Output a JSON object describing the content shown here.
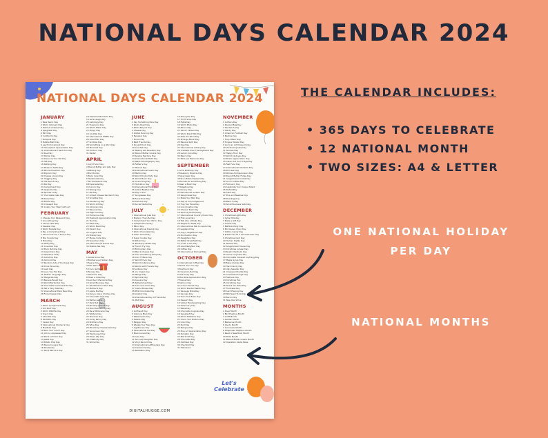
{
  "title": "NATIONAL DAYS CALENDAR 2024",
  "sheet": {
    "title": "NATIONAL DAYS CALENDAR 2024",
    "footer": "DIGITALHUGGE.COM",
    "sticker": "Let's Celebrate",
    "columns": [
      {
        "sections": [
          {
            "month": "JANUARY",
            "days": [
              "1 New Year's Day",
              "2 World Introvert Day",
              "3 Festival of Sleep Day",
              "4 Spaghetti Day",
              "5 Bird Day",
              "6 Cuddle Up Day",
              "7 Tempura Day",
              "8 Bubble Bath Day",
              "9 Law Enforcement Day",
              "10 Houseplant Appreciation Day",
              "11 International Thank-You Day",
              "12 Kiss Day",
              "13 Sticker Day",
              "14 Dress Up Your Pet Day",
              "15 Hat Day",
              "16 Nothing Day",
              "17 Museum Selfie Day",
              "18 Winnie-the-Pooh Day",
              "19 Popcorn Day",
              "20 Cheese Lovers Day",
              "21 Hugging Day",
              "22 Hot Sauce Day",
              "23 Pie Day",
              "24 Compliment Day",
              "25 Opposite Day",
              "26 Spouse's Day",
              "27 Chocolate Cake Day",
              "28 Kazoo Day",
              "29 Puzzle Day",
              "30 Croissant Day",
              "31 Inspire Your Heart with Art"
            ]
          },
          {
            "month": "FEBRUARY",
            "days": [
              "1 Change Your Password Day",
              "2 Groundhog Day",
              "3 Carrot Cake Day",
              "4 Sweater Day",
              "5 World Nutella Day",
              "6 Pay a Compliment Day",
              "7 Send a Card to a Friend Day",
              "8 Boy Scouts Day",
              "9 Pizza Day",
              "10 Teddy Day",
              "11 Inventors Day",
              "12 Plum Pudding Day",
              "13 Galentine's Day",
              "14 Valentine's Day",
              "15 Gumdrop Day",
              "16 Almond Day",
              "17 Random Acts of Kindness Day",
              "18 Drink Wine Day",
              "19 Lash Day",
              "20 Love Your Pet Day",
              "21 Mother Language Day",
              "22 Margarita Day",
              "23 Banana Bread Day",
              "24 World Bartender Day",
              "25 Chocolate Covered Nuts Day",
              "26 Tell a Fairy Tale Day",
              "27 International Polar Bear Day",
              "28 Floral Design Day"
            ]
          },
          {
            "month": "MARCH",
            "days": [
              "1 World Compliment Day",
              "2 Old Stuff Day",
              "3 World Wildlife Day",
              "4 Snack Day",
              "5 Absinthe Day",
              "6 Dentist's Day",
              "7 Cereal Day",
              "8 International Women's Day",
              "9 Meatball Day",
              "10 Pack Your Lunch Day",
              "11 Johnny Appleseed Day",
              "12 Plant a Flower Day",
              "13 Jewel Day",
              "14 Potato Chip Day",
              "15 Peanut Lovers Day",
              "16 Panda Day",
              "17 Saint Patrick's Day"
            ]
          }
        ]
      },
      {
        "sections": [
          {
            "month": "",
            "days": [
              "18 Awkward Moments Day",
              "19 Let's Laugh Day",
              "20 Astrology Day",
              "21 Fragrance Day",
              "22 World Water Day",
              "23 Puppy Day",
              "24 Cocktail Day",
              "25 International Waffle Day",
              "26 Good Hair Day",
              "27 Scribble Day",
              "28 Something on a Stick Day",
              "29 Mermaid Day",
              "30 Doctors' Day",
              "31 Easter"
            ]
          },
          {
            "month": "APRIL",
            "days": [
              "1 April Fools' Day",
              "2 Peanut Butter and Jelly Day",
              "3 Walking Day",
              "4 Burrito Day",
              "5 Body Care Day",
              "6 Handmade Day",
              "7 No Housework Day",
              "8 Empanada Day",
              "9 Unicorn Day",
              "10 Sibling Day",
              "11 Pet Day",
              "12 Grilled Cheese Sandwich Day",
              "13 Scrabble Day",
              "14 Gardening Day",
              "15 World Art Day",
              "16 Librarian Day",
              "17 Banana Day",
              "18 High Five Day",
              "19 Humorous Day",
              "20 Husband Appreciation Day",
              "21 Tea Day",
              "22 Earth Day",
              "23 World Book Day",
              "24 Denim Day",
              "25 Lingerie Day",
              "26 Pretzel Day",
              "27 Morse Code Day",
              "28 Superhero Day",
              "29 International Dance Day",
              "30 Bubble Tea Day"
            ]
          },
          {
            "month": "MAY",
            "days": [
              "1 Global Love Day",
              "2 Brothers and Sisters Day",
              "3 Space Day",
              "4 Star Wars Day",
              "5 Cinco de Mayo",
              "6 Nurses Day",
              "7 Teachers' Day",
              "8 Have a Coke Day",
              "9 Lost Sock Memorial Day",
              "10 Small Business Day",
              "11 Eat What You Want Day",
              "12 Mother's Day",
              "13 Apple Pie Day",
              "14 Dance Like a Chicken Day",
              "15 Chocolate Chip Day",
              "16 Barbecue Day",
              "17 Pack Rat Day",
              "18 No Dirty Dishes Day",
              "19 Plant Something Day",
              "20 Be a Millionaire Day",
              "21 Waiters Day",
              "22 Sherlock Day",
              "23 Lucky Penny Day",
              "24 Brother's Day",
              "25 Wine Day",
              "26 Blueberry Cheesecake Day",
              "27 Sunscreen Day",
              "28 Hamburger Day",
              "29 Paper Clip Day",
              "30 Creativity Day",
              "31 Smile Day"
            ]
          }
        ]
      },
      {
        "sections": [
          {
            "month": "JUNE",
            "days": [
              "1 Say Something Nice Day",
              "2 Rocky Road Day",
              "3 World Bicycle Day",
              "4 Cheese Day",
              "5 Global Running Day",
              "6 Eyewear Day",
              "7 Donut Day",
              "8 Best Friends Day",
              "9 Donald Duck Day",
              "10 Iced Tea Day",
              "11 Making Life Beautiful Day",
              "12 Peanut Butter Cookie Day",
              "13 Sewing Machine Day",
              "14 International Bath Day",
              "15 Nature Photography Day",
              "16 Father's Day",
              "17 Mascot Day",
              "18 International Sushi Day",
              "19 Martini Day",
              "20 World Productivity Day",
              "21 World Music Day",
              "22 Onion Ring Day",
              "23 Hydration Day",
              "24 International Fairy Day",
              "25 Global Beatles Day",
              "26 Day of Sun",
              "27 Sunglasses Day",
              "28 Food Truck Day",
              "29 Camera Day",
              "30 Social Media Day"
            ]
          },
          {
            "month": "JULY",
            "days": [
              "1 International Joke Day",
              "2 Made In The USA Day",
              "3 Compliment Your Mirror Day",
              "4 Independence Day",
              "5 Bikini Day",
              "6 International Kissing Day",
              "7 World Chocolate Day",
              "8 Video Game Day",
              "9 Sugar Cookie Day",
              "10 Kitten Day",
              "11 Blueberry Muffin Day",
              "12 French Fry Day",
              "13 Embroidery Day",
              "14 Mac & Cheese Day",
              "15 Give Something Away Day",
              "16 Corn Fritters Day",
              "17 World Emoji Day",
              "18 World Listening Day",
              "19 Words with Friends Day",
              "20 Lollipop Day",
              "21 Ice Cream Day",
              "22 Mango Day",
              "23 Sprinkle Day",
              "24 Cousins Day",
              "25 Refreshment Day",
              "26 Aunt and Uncle Day",
              "27 Creme Brulee Day",
              "28 Milk Chocolate Day",
              "29 Lipstick Day",
              "30 International Day of Friendship",
              "31 Mutt Day"
            ]
          },
          {
            "month": "AUGUST",
            "days": [
              "1 Girlfriend Day",
              "2 Coloring Book Day",
              "3 Watermelon Day",
              "4 Sisters Day",
              "5 Blogger Day",
              "6 Wiggle Your Toes Day",
              "7 Lighthouse Day",
              "8 International Cat Day",
              "9 Book Lovers Day",
              "10 Lazy Day",
              "11 Son and Daughter Day",
              "12 Vinyl Record Day",
              "13 International Lefthanders Day",
              "14 Creamsicle Day",
              "15 Relaxation Day"
            ]
          }
        ]
      },
      {
        "sections": [
          {
            "month": "",
            "days": [
              "16 Tell a Joke Day",
              "17 Thrift Shop Day",
              "18 Fajita Day",
              "19 World Photo Day",
              "20 Bacon Day",
              "21 Senior Citizen Day",
              "22 World Plant Milk Day",
              "23 Ride the Wind Day",
              "24 Strange Music Day",
              "25 Banana Split Day",
              "26 Dog Day",
              "27 International Lottery Day",
              "28 Crackers Over The Keyboard Day",
              "29 Lemon Juice Day",
              "30 Beach Day",
              "31 Eat Love Memories Day"
            ]
          },
          {
            "month": "SEPTEMBER",
            "days": [
              "1 Acne Positivity Day",
              "2 Blueberry Popsicle Day",
              "3 Skyscraper Day",
              "4 Eat an Extra Dessert Day",
              "5 Be Late for Something Day",
              "6 Read a Book Day",
              "7 Tailgating Day",
              "8 Literacy Day",
              "9 International Sudoku Day",
              "10 Swap Ideas Day",
              "11 Make Your Bed Day",
              "12 Day of Encouragement",
              "13 Hug Your Boss Day",
              "14 Live Creative Day",
              "15 Cheese Toast Day",
              "16 Working Parents Day",
              "17 International Country Music Day",
              "18 First Love Day",
              "19 Talk Like a Pirate Day",
              "20 Pepperoni Pizza Day",
              "21 International Eat An Apple Day",
              "22 Legoland Day",
              "23 Hug a Vegetarian Day",
              "24 Punctuation Day",
              "25 Daughters Day",
              "26 Better Breakfast Day",
              "27 Crush a Can Day",
              "28 Good Neighbor Day",
              "29 Coffee Day",
              "30 International Podcast Day"
            ]
          },
          {
            "month": "OCTOBER",
            "days": [
              "1 International Coffee Day",
              "2 Name Your Car Day",
              "3 Boyfriend Day",
              "4 Cinnamon Roll Day",
              "5 Get Funky Day",
              "6 Plus Size Appreciation Day",
              "7 Frappe Day",
              "8 Salmon Day",
              "9 Curious Events Day",
              "10 World Mental Health Day",
              "11 Sausage Pizza Day",
              "12 Savings Day",
              "13 Train Your Brain Day",
              "14 Dessert Day",
              "15 Global Handwashing Day",
              "16 Dictionary Day",
              "17 Pasta Day",
              "18 Chocolate Cupcake Day",
              "19 Sweetest Day",
              "20 World Statistics Day",
              "21 Count Your Buttons Day",
              "22 Color Day",
              "23 iPod Day",
              "24 Bologna Day",
              "25 Pine Art Appreciation Day",
              "26 Pumpkin Day",
              "27 Black Cat Day",
              "28 Chocolate Day",
              "29 Oatmeal Day",
              "30 Checklist Day",
              "31 Halloween"
            ]
          }
        ]
      },
      {
        "sections": [
          {
            "month": "NOVEMBER",
            "days": [
              "1 Authors Day",
              "2 Deviled Egg Day",
              "3 Sandwich Day",
              "4 Candy Day",
              "5 American Football Day",
              "6 Nachos Day",
              "7 Hug A Bear Day",
              "8 Tongue Twister Day",
              "9 Go to an Art Museum Day",
              "10 Vanilla Cupcake Day",
              "11 Sundae Day",
              "12 Happy Hour Day",
              "13 World Kindness Day",
              "14 Pickle Appreciation Day",
              "15 Clean Out Your Fridge Day",
              "16 Fast Food Day",
              "17 International Students Day",
              "18 Princess Day",
              "19 Women Entrepreneurs Day",
              "20 Peanut Butter Fudge Day",
              "21 Gingerbread Cookie Day",
              "22 Go For a Ride Day",
              "23 Fibonacci Day",
              "24 Celebrate Your Unique Talent",
              "25 Parfait Day",
              "26 Cake Day",
              "27 Pins and Needles Day",
              "28 Thanksgiving",
              "29 Black Friday",
              "30 Small Business Saturday"
            ]
          },
          {
            "month": "DECEMBER",
            "days": [
              "1 Christmas Lights Day",
              "2 Cyber Monday",
              "3 Make a Gift Day",
              "4 Cookie Day",
              "5 Bathtub Party Day",
              "6 Microwave Oven Day",
              "7 Cotton Candy Day",
              "8 Pretend to be a Time Traveler Day",
              "9 Christmas Card Day",
              "10 Human Rights Day",
              "11 Noodle Day",
              "12 Gingerbread House Day",
              "13 Christmas Jumper Day",
              "14 Roast Chestnuts Day",
              "15 Lemon Cupcake Day",
              "16 Chocolate Covered Anything Day",
              "17 Maple Syrup Day",
              "18 Bake Cookies Day",
              "19 Hard Candy Day",
              "20 Ugly Sweater Day",
              "21 Crossword Puzzle Day",
              "22 Cookie Exchange Day",
              "23 Festivus Day",
              "24 Christmas Eve",
              "25 Christmas Day",
              "26 Thank You Note Day",
              "27 Fruitcake Day",
              "28 Card Playing Day",
              "29 Still Need To Do Day",
              "30 Bacon Day",
              "31 New Year's Eve"
            ]
          },
          {
            "month": "MONTHS",
            "days": [
              "1 Soup Month",
              "2 Bird Feeding Month",
              "3 Craft Month",
              "4 Garden Month",
              "5 Barbecue Month",
              "6 Candy Month",
              "7 Ice Cream Month",
              "8 Happiness Happens Month",
              "9 Read A New Book Month",
              "10 Pizza Month",
              "11 Peanut Butter Lovers Month",
              "12 Operation Santa Paws"
            ]
          }
        ]
      }
    ]
  },
  "includes": {
    "heading": "THE CALENDAR INCLUDES:",
    "items": [
      "365 DAYS TO CELEBRATE",
      "12 NATIONAL MONTH",
      "TWO SIZES: A4 & LETTER"
    ]
  },
  "callouts": {
    "holiday_line1": "ONE NATIONAL HOLIDAY",
    "holiday_line2": "PER DAY",
    "months": "NATIONAL MONTHS"
  },
  "colors": {
    "background": "#f39a78",
    "title": "#1f2a3d",
    "sheet_title": "#e8763f",
    "month_heading": "#b4302f"
  }
}
